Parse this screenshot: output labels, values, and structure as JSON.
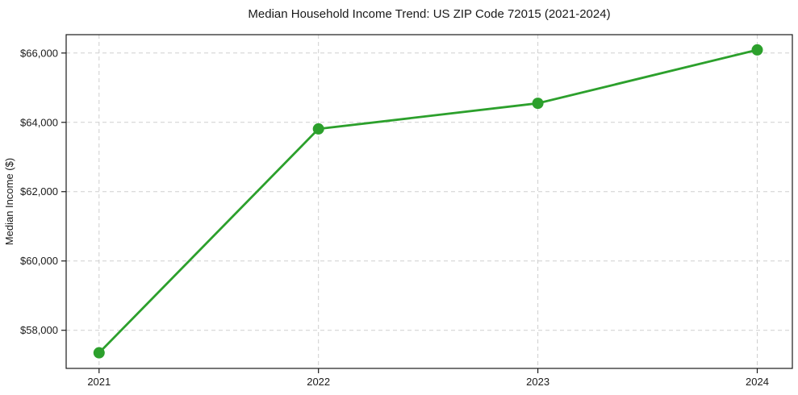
{
  "chart_data": {
    "type": "line",
    "title": "Median Household Income Trend: US ZIP Code 72015 (2021-2024)",
    "xlabel": "",
    "ylabel": "Median Income ($)",
    "x": [
      2021,
      2022,
      2023,
      2024
    ],
    "xtick_labels": [
      "2021",
      "2022",
      "2023",
      "2024"
    ],
    "values": [
      57350,
      63810,
      64550,
      66090
    ],
    "yticks": [
      58000,
      60000,
      62000,
      64000,
      66000
    ],
    "ytick_labels": [
      "$58,000",
      "$60,000",
      "$62,000",
      "$64,000",
      "$66,000"
    ],
    "xlim": [
      2020.85,
      2024.16
    ],
    "ylim": [
      56900,
      66530
    ],
    "grid": true,
    "grid_style": "dashed",
    "legend": "none",
    "line_color": "#2ca02c",
    "marker": "circle",
    "background_color": "#ffffff"
  }
}
